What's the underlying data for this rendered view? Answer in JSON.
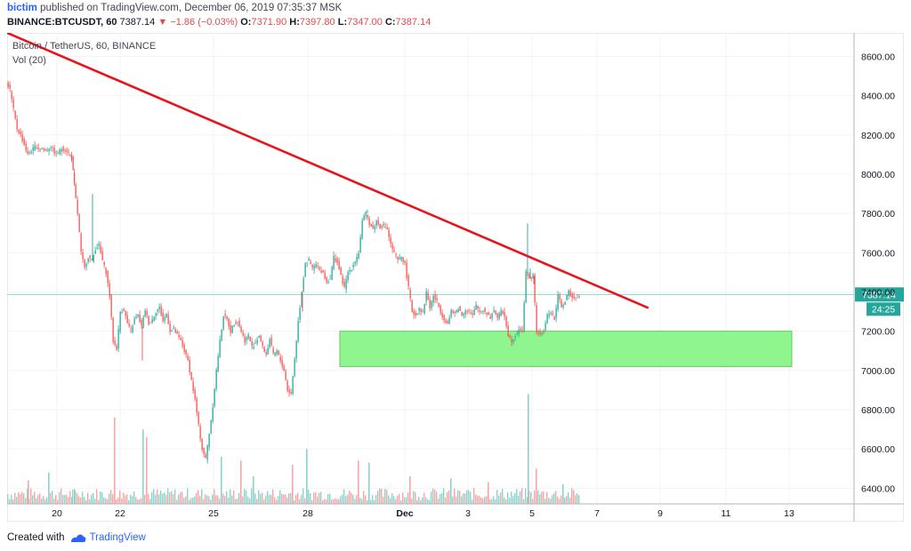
{
  "header": {
    "author": "bictim",
    "published_text": "published on TradingView.com, December 06, 2019 07:35:37 MSK",
    "symbol": "BINANCE:BTCUSDT, 60",
    "last": "7387.14",
    "change_arrow": "▼",
    "change": "−1.86 (−0.03%)",
    "open_label": "O:",
    "open": "7371.90",
    "high_label": "H:",
    "high": "7397.80",
    "low_label": "L:",
    "low": "7347.00",
    "close_label": "C:",
    "close": "7387.14"
  },
  "legend": {
    "series": "Bitcoin / TetherUS, 60, BINANCE",
    "volume": "Vol (20)"
  },
  "footer": {
    "created_with": "Created with",
    "brand": "TradingView"
  },
  "colors": {
    "up": "#26a69a",
    "down": "#ef5350",
    "trendline": "#e8141b",
    "zone": "#8ff58f",
    "price_line": "#8fd6c9",
    "label_bg": "#26a69a"
  },
  "chart_data": {
    "type": "candlestick",
    "title": "Bitcoin / TetherUS, 60, BINANCE",
    "ylim": [
      6320,
      8720
    ],
    "y_ticks": [
      "8600.00",
      "8400.00",
      "8200.00",
      "8000.00",
      "7800.00",
      "7600.00",
      "7400.00",
      "7200.00",
      "7000.00",
      "6800.00",
      "6600.00",
      "6400.00"
    ],
    "x_ticks": [
      "20",
      "22",
      "25",
      "28",
      "Dec",
      "3",
      "5",
      "7",
      "9",
      "11",
      "13"
    ],
    "last_price_label": "7387.14",
    "countdown_label": "24:25",
    "close_path": [
      [
        0,
        8470
      ],
      [
        4,
        8430
      ],
      [
        8,
        8330
      ],
      [
        12,
        8230
      ],
      [
        16,
        8200
      ],
      [
        20,
        8150
      ],
      [
        24,
        8100
      ],
      [
        28,
        8120
      ],
      [
        32,
        8140
      ],
      [
        38,
        8130
      ],
      [
        44,
        8120
      ],
      [
        50,
        8140
      ],
      [
        56,
        8100
      ],
      [
        62,
        8130
      ],
      [
        68,
        8120
      ],
      [
        73,
        8080
      ],
      [
        76,
        7950
      ],
      [
        80,
        7800
      ],
      [
        84,
        7600
      ],
      [
        88,
        7520
      ],
      [
        92,
        7580
      ],
      [
        96,
        7560
      ],
      [
        100,
        7620
      ],
      [
        104,
        7640
      ],
      [
        108,
        7560
      ],
      [
        112,
        7500
      ],
      [
        116,
        7380
      ],
      [
        120,
        7150
      ],
      [
        124,
        7110
      ],
      [
        128,
        7300
      ],
      [
        132,
        7310
      ],
      [
        136,
        7240
      ],
      [
        140,
        7200
      ],
      [
        144,
        7260
      ],
      [
        148,
        7280
      ],
      [
        152,
        7220
      ],
      [
        156,
        7310
      ],
      [
        160,
        7240
      ],
      [
        164,
        7260
      ],
      [
        168,
        7300
      ],
      [
        172,
        7320
      ],
      [
        176,
        7250
      ],
      [
        180,
        7290
      ],
      [
        184,
        7200
      ],
      [
        188,
        7210
      ],
      [
        192,
        7180
      ],
      [
        196,
        7150
      ],
      [
        200,
        7100
      ],
      [
        204,
        7050
      ],
      [
        208,
        6950
      ],
      [
        212,
        6850
      ],
      [
        216,
        6720
      ],
      [
        220,
        6600
      ],
      [
        224,
        6550
      ],
      [
        228,
        6680
      ],
      [
        232,
        6820
      ],
      [
        236,
        7000
      ],
      [
        240,
        7150
      ],
      [
        244,
        7280
      ],
      [
        248,
        7260
      ],
      [
        252,
        7200
      ],
      [
        256,
        7240
      ],
      [
        260,
        7250
      ],
      [
        264,
        7200
      ],
      [
        268,
        7150
      ],
      [
        272,
        7180
      ],
      [
        276,
        7120
      ],
      [
        280,
        7140
      ],
      [
        284,
        7180
      ],
      [
        288,
        7120
      ],
      [
        292,
        7080
      ],
      [
        296,
        7160
      ],
      [
        300,
        7080
      ],
      [
        304,
        7100
      ],
      [
        308,
        7050
      ],
      [
        312,
        7000
      ],
      [
        316,
        6900
      ],
      [
        320,
        6880
      ],
      [
        324,
        7060
      ],
      [
        328,
        7250
      ],
      [
        332,
        7400
      ],
      [
        336,
        7550
      ],
      [
        340,
        7560
      ],
      [
        344,
        7520
      ],
      [
        348,
        7540
      ],
      [
        352,
        7510
      ],
      [
        356,
        7500
      ],
      [
        360,
        7450
      ],
      [
        364,
        7470
      ],
      [
        368,
        7580
      ],
      [
        372,
        7550
      ],
      [
        376,
        7480
      ],
      [
        380,
        7420
      ],
      [
        384,
        7500
      ],
      [
        388,
        7520
      ],
      [
        392,
        7560
      ],
      [
        396,
        7600
      ],
      [
        400,
        7760
      ],
      [
        404,
        7800
      ],
      [
        408,
        7750
      ],
      [
        412,
        7720
      ],
      [
        416,
        7760
      ],
      [
        420,
        7730
      ],
      [
        424,
        7740
      ],
      [
        428,
        7720
      ],
      [
        432,
        7640
      ],
      [
        436,
        7600
      ],
      [
        440,
        7560
      ],
      [
        444,
        7580
      ],
      [
        448,
        7540
      ],
      [
        452,
        7420
      ],
      [
        456,
        7300
      ],
      [
        460,
        7280
      ],
      [
        464,
        7320
      ],
      [
        468,
        7290
      ],
      [
        472,
        7400
      ],
      [
        476,
        7320
      ],
      [
        480,
        7380
      ],
      [
        484,
        7350
      ],
      [
        488,
        7300
      ],
      [
        492,
        7260
      ],
      [
        496,
        7240
      ],
      [
        500,
        7300
      ],
      [
        504,
        7290
      ],
      [
        508,
        7320
      ],
      [
        512,
        7280
      ],
      [
        516,
        7310
      ],
      [
        520,
        7300
      ],
      [
        524,
        7280
      ],
      [
        528,
        7330
      ],
      [
        532,
        7300
      ],
      [
        536,
        7310
      ],
      [
        540,
        7290
      ],
      [
        544,
        7270
      ],
      [
        548,
        7310
      ],
      [
        552,
        7270
      ],
      [
        556,
        7300
      ],
      [
        560,
        7280
      ],
      [
        564,
        7180
      ],
      [
        568,
        7150
      ],
      [
        572,
        7180
      ],
      [
        576,
        7210
      ],
      [
        580,
        7200
      ],
      [
        584,
        7500
      ],
      [
        588,
        7470
      ],
      [
        592,
        7480
      ],
      [
        596,
        7200
      ],
      [
        600,
        7180
      ],
      [
        604,
        7200
      ],
      [
        608,
        7280
      ],
      [
        612,
        7300
      ],
      [
        616,
        7260
      ],
      [
        620,
        7380
      ],
      [
        624,
        7330
      ],
      [
        628,
        7350
      ],
      [
        632,
        7400
      ],
      [
        636,
        7370
      ],
      [
        640,
        7380
      ],
      [
        644,
        7387.14
      ]
    ],
    "wicks": [
      [
        96,
        7900
      ],
      [
        152,
        7050
      ],
      [
        332,
        7300
      ],
      [
        405,
        7820
      ],
      [
        585,
        7750
      ],
      [
        588,
        7520
      ],
      [
        592,
        7440
      ]
    ],
    "volume_spikes": [
      [
        23,
        6440
      ],
      [
        46,
        6480
      ],
      [
        120,
        6760
      ],
      [
        152,
        6700
      ],
      [
        156,
        6660
      ],
      [
        240,
        6560
      ],
      [
        262,
        6540
      ],
      [
        276,
        6460
      ],
      [
        320,
        6520
      ],
      [
        336,
        6600
      ],
      [
        394,
        6540
      ],
      [
        406,
        6530
      ],
      [
        452,
        6460
      ],
      [
        498,
        6450
      ],
      [
        540,
        6430
      ],
      [
        585,
        6880
      ],
      [
        594,
        6500
      ],
      [
        624,
        6420
      ]
    ],
    "trendline": {
      "start": [
        0,
        8720
      ],
      "end": [
        720,
        7320
      ]
    },
    "support_zone": {
      "x_start": 374,
      "x_end": 882,
      "y_low": 7020,
      "y_high": 7200
    },
    "last_price": 7387.14
  }
}
